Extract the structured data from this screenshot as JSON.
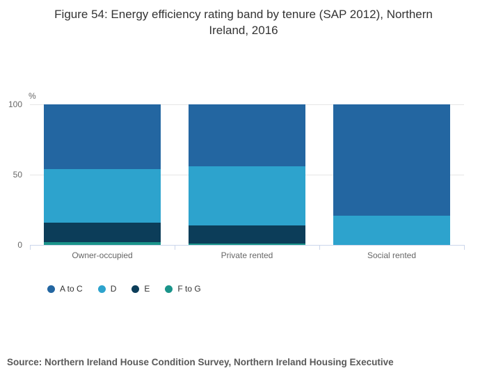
{
  "title": "Figure 54: Energy efficiency rating band by tenure (SAP 2012), Northern Ireland, 2016",
  "source": "Source: Northern Ireland House Condition Survey, Northern Ireland Housing Executive",
  "y_axis": {
    "unit_label": "%",
    "ticks": [
      "100",
      "50",
      "0"
    ]
  },
  "chart_data": {
    "type": "bar",
    "stacked": true,
    "title": "Figure 54: Energy efficiency rating band by tenure (SAP 2012), Northern Ireland, 2016",
    "categories": [
      "Owner-occupied",
      "Private rented",
      "Social rented"
    ],
    "series": [
      {
        "name": "A to C",
        "color": "#2366a1",
        "values": [
          46,
          44,
          79
        ]
      },
      {
        "name": "D",
        "color": "#2da3cd",
        "values": [
          38,
          42,
          21
        ]
      },
      {
        "name": "E",
        "color": "#0c3d59",
        "values": [
          14,
          13,
          0
        ]
      },
      {
        "name": "F to G",
        "color": "#1a948a",
        "values": [
          2,
          1,
          0
        ]
      }
    ],
    "xlabel": "",
    "ylabel": "%",
    "ylim": [
      0,
      100
    ],
    "grid": true,
    "legend_position": "bottom-left"
  }
}
